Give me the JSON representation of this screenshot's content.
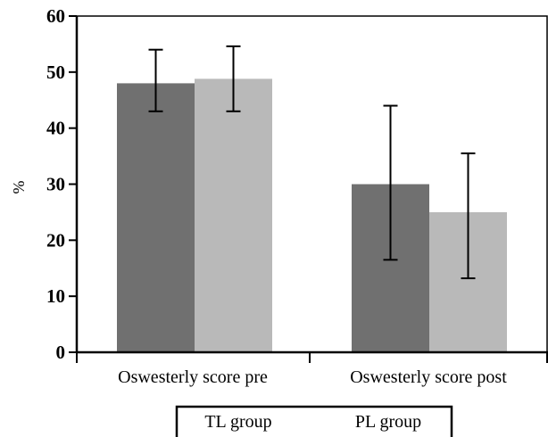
{
  "chart_data": {
    "type": "bar",
    "categories": [
      "Oswesterly score pre",
      "Oswesterly score post"
    ],
    "series": [
      {
        "name": "TL group",
        "values": [
          48,
          30
        ],
        "error_low": [
          43,
          16.5
        ],
        "error_high": [
          54,
          44
        ],
        "color": "#707070"
      },
      {
        "name": "PL group",
        "values": [
          48.8,
          25
        ],
        "error_low": [
          43,
          13.2
        ],
        "error_high": [
          54.6,
          35.5
        ],
        "color": "#b9b9b9"
      }
    ],
    "ylabel": "%",
    "ylim": [
      0,
      60
    ],
    "yticks": [
      "0",
      "10",
      "20",
      "30",
      "40",
      "50",
      "60"
    ],
    "legend_position": "bottom",
    "grid": false
  }
}
